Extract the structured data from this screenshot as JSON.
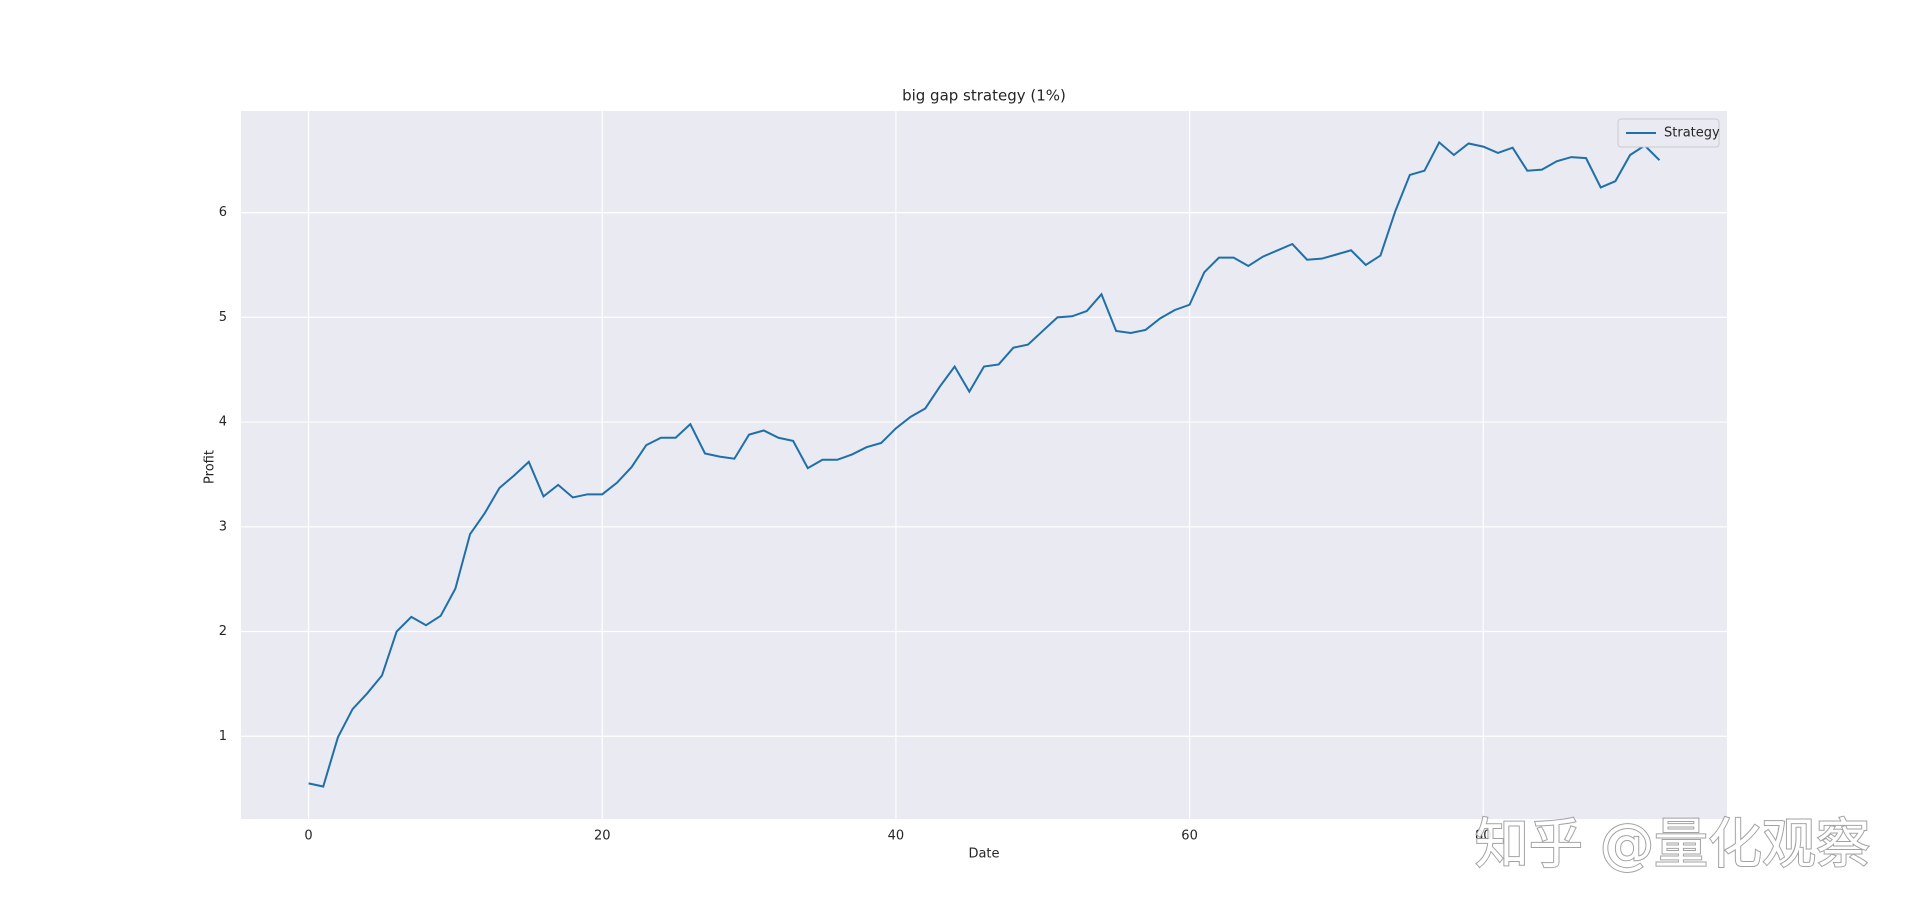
{
  "chart_data": {
    "type": "line",
    "title": "big gap strategy (1%)",
    "xlabel": "Date",
    "ylabel": "Profit",
    "x": [
      0,
      1,
      2,
      3,
      4,
      5,
      6,
      7,
      8,
      9,
      10,
      11,
      12,
      13,
      14,
      15,
      16,
      17,
      18,
      19,
      20,
      21,
      22,
      23,
      24,
      25,
      26,
      27,
      28,
      29,
      30,
      31,
      32,
      33,
      34,
      35,
      36,
      37,
      38,
      39,
      40,
      41,
      42,
      43,
      44,
      45,
      46,
      47,
      48,
      49,
      50,
      51,
      52,
      53,
      54,
      55,
      56,
      57,
      58,
      59,
      60,
      61,
      62,
      63,
      64,
      65,
      66,
      67,
      68,
      69,
      70,
      71,
      72,
      73,
      74,
      75,
      76,
      77,
      78,
      79,
      80,
      81,
      82,
      83,
      84,
      85,
      86,
      87,
      88,
      89,
      90,
      91,
      92
    ],
    "series": [
      {
        "name": "Strategy",
        "color": "#1f6fa8",
        "values": [
          0.55,
          0.52,
          0.99,
          1.26,
          1.41,
          1.58,
          2.0,
          2.14,
          2.06,
          2.15,
          2.41,
          2.93,
          3.13,
          3.37,
          3.49,
          3.62,
          3.29,
          3.4,
          3.28,
          3.31,
          3.31,
          3.42,
          3.57,
          3.78,
          3.85,
          3.85,
          3.98,
          3.7,
          3.67,
          3.65,
          3.88,
          3.92,
          3.85,
          3.82,
          3.56,
          3.64,
          3.64,
          3.69,
          3.76,
          3.8,
          3.94,
          4.05,
          4.13,
          4.34,
          4.53,
          4.29,
          4.53,
          4.55,
          4.71,
          4.74,
          4.87,
          5.0,
          5.01,
          5.06,
          5.22,
          4.87,
          4.85,
          4.88,
          4.99,
          5.07,
          5.12,
          5.43,
          5.57,
          5.57,
          5.49,
          5.58,
          5.64,
          5.7,
          5.55,
          5.56,
          5.6,
          5.64,
          5.5,
          5.59,
          6.01,
          6.36,
          6.4,
          6.67,
          6.55,
          6.66,
          6.63,
          6.57,
          6.62,
          6.4,
          6.41,
          6.49,
          6.53,
          6.52,
          6.24,
          6.3,
          6.55,
          6.64,
          6.5
        ]
      }
    ],
    "xlim": [
      -4.6,
      96.6
    ],
    "ylim": [
      0.21,
      6.97
    ],
    "xticks": [
      0,
      20,
      40,
      60,
      80
    ],
    "yticks": [
      1,
      2,
      3,
      4,
      5,
      6
    ],
    "grid": true,
    "legend": "upper right",
    "background": "#eaeaf2",
    "watermark": "知乎 @量化观察"
  }
}
